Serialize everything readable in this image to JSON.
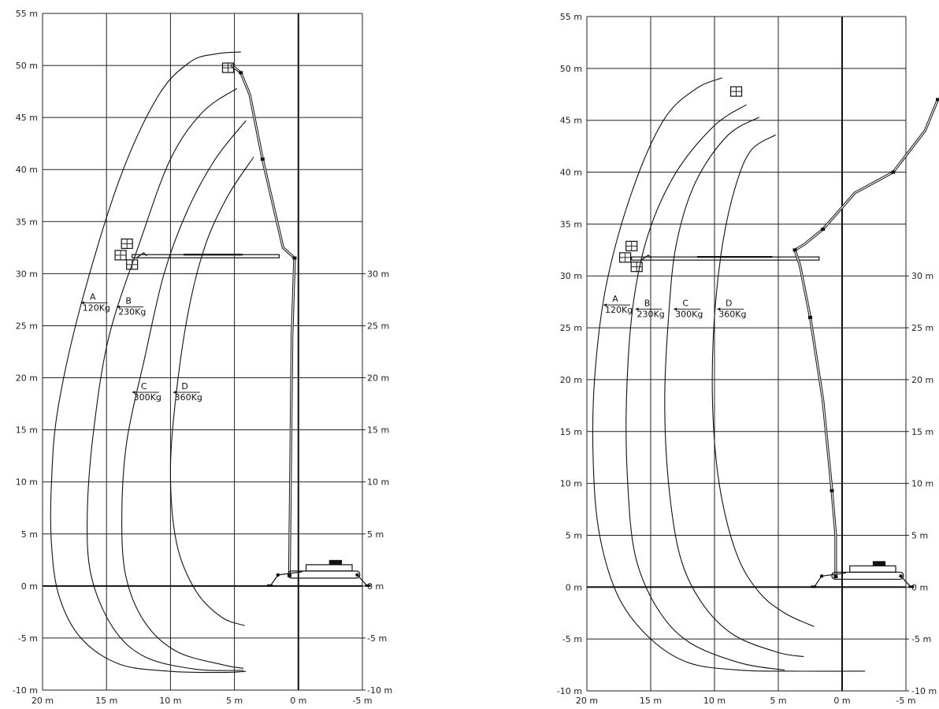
{
  "units": {
    "meter_suffix": " m",
    "load_suffix": "Kg"
  },
  "diagrams": [
    {
      "id": "left",
      "x_ticks": [
        20,
        15,
        10,
        5,
        0,
        -5
      ],
      "y_ticks_left": [
        55,
        50,
        45,
        40,
        35,
        30,
        25,
        20,
        15,
        10,
        5,
        0,
        -5,
        -10
      ],
      "y_ticks_right": [
        30,
        25,
        20,
        15,
        10,
        5,
        0,
        -5,
        -10
      ],
      "x_range_m": [
        20,
        -5
      ],
      "y_range_m": [
        -10,
        55
      ],
      "envelopes": [
        {
          "zone": "A",
          "load_kg": 120,
          "label_at_m": [
            17.0,
            27.2
          ],
          "points_m": [
            [
              4.5,
              51.3
            ],
            [
              6.5,
              51.1
            ],
            [
              8.5,
              50.3
            ],
            [
              11,
              47
            ],
            [
              14,
              39
            ],
            [
              17,
              27
            ],
            [
              18.8,
              17
            ],
            [
              19.3,
              10
            ],
            [
              19.3,
              4
            ],
            [
              18.7,
              -1
            ],
            [
              17,
              -5
            ],
            [
              14,
              -7.5
            ],
            [
              10,
              -8.2
            ],
            [
              6,
              -8.3
            ],
            [
              4.1,
              -8.2
            ]
          ]
        },
        {
          "zone": "B",
          "load_kg": 230,
          "label_at_m": [
            14.2,
            26.8
          ],
          "points_m": [
            [
              4.8,
              47.8
            ],
            [
              7.5,
              45.5
            ],
            [
              10,
              41
            ],
            [
              12.4,
              33
            ],
            [
              14.8,
              24
            ],
            [
              16,
              15
            ],
            [
              16.5,
              7
            ],
            [
              16.2,
              1
            ],
            [
              14.5,
              -4
            ],
            [
              12,
              -6.8
            ],
            [
              8,
              -8
            ],
            [
              4.3,
              -8.1
            ]
          ]
        },
        {
          "zone": "C",
          "load_kg": 300,
          "label_at_m": [
            13.0,
            18.6
          ],
          "points_m": [
            [
              4.1,
              44.7
            ],
            [
              6.5,
              41
            ],
            [
              8.7,
              36
            ],
            [
              10.5,
              30
            ],
            [
              12,
              22
            ],
            [
              13.4,
              14
            ],
            [
              13.8,
              7
            ],
            [
              13.5,
              1
            ],
            [
              12,
              -3.5
            ],
            [
              9.5,
              -6.3
            ],
            [
              5.8,
              -7.6
            ],
            [
              4.3,
              -7.9
            ]
          ]
        },
        {
          "zone": "D",
          "load_kg": 360,
          "label_at_m": [
            9.8,
            18.6
          ],
          "points_m": [
            [
              3.5,
              41.2
            ],
            [
              5.5,
              37.5
            ],
            [
              7.2,
              33
            ],
            [
              8.5,
              27
            ],
            [
              9.5,
              19
            ],
            [
              10,
              11
            ],
            [
              9.5,
              4
            ],
            [
              8,
              -0.5
            ],
            [
              6,
              -3
            ],
            [
              4.2,
              -3.8
            ]
          ]
        }
      ],
      "boom_vertical_m": [
        [
          0.7,
          1
        ],
        [
          0.5,
          24
        ],
        [
          0.3,
          31.5
        ],
        [
          1.2,
          32.5
        ],
        [
          2.8,
          41
        ],
        [
          3.8,
          47.2
        ],
        [
          4.5,
          49.3
        ],
        [
          5.2,
          50
        ]
      ],
      "boom_horizontal_m": [
        [
          13,
          31.6
        ],
        [
          1.5,
          31.8
        ]
      ],
      "basket_upper_m": [
        5.5,
        49.7
      ],
      "basket_side_m": [
        13.2,
        31.7
      ]
    },
    {
      "id": "right",
      "x_ticks": [
        20,
        15,
        10,
        5,
        0,
        -5
      ],
      "y_ticks_left": [
        55,
        50,
        45,
        40,
        35,
        30,
        25,
        20,
        15,
        10,
        5,
        0,
        -5,
        -10
      ],
      "y_ticks_right": [
        30,
        25,
        20,
        15,
        10,
        5,
        0,
        -5,
        -10
      ],
      "x_range_m": [
        20,
        -5
      ],
      "y_range_m": [
        -10,
        55
      ],
      "envelopes": [
        {
          "zone": "A",
          "load_kg": 120,
          "label_at_m": [
            18.7,
            27.2
          ],
          "points_m": [
            [
              9.4,
              49.1
            ],
            [
              11.5,
              48
            ],
            [
              14,
              45
            ],
            [
              16.5,
              38
            ],
            [
              18.5,
              29
            ],
            [
              19.4,
              20
            ],
            [
              19.5,
              12
            ],
            [
              19,
              5
            ],
            [
              17.5,
              -1
            ],
            [
              15,
              -5
            ],
            [
              12,
              -7.3
            ],
            [
              8,
              -8
            ],
            [
              4,
              -8.1
            ],
            [
              -1.8,
              -8.1
            ]
          ]
        },
        {
          "zone": "B",
          "load_kg": 230,
          "label_at_m": [
            16.2,
            26.8
          ],
          "points_m": [
            [
              7.5,
              46.5
            ],
            [
              10,
              44.5
            ],
            [
              13,
              40
            ],
            [
              15.2,
              34
            ],
            [
              16.4,
              27
            ],
            [
              16.9,
              18
            ],
            [
              16.8,
              10
            ],
            [
              16.2,
              3
            ],
            [
              14.5,
              -2
            ],
            [
              12,
              -5.3
            ],
            [
              8,
              -7.3
            ],
            [
              4.5,
              -8
            ]
          ]
        },
        {
          "zone": "C",
          "load_kg": 300,
          "label_at_m": [
            13.2,
            26.8
          ],
          "points_m": [
            [
              6.5,
              45.3
            ],
            [
              9,
              43.5
            ],
            [
              11.5,
              39
            ],
            [
              13,
              33
            ],
            [
              13.6,
              26
            ],
            [
              13.9,
              18
            ],
            [
              13.6,
              10
            ],
            [
              12.7,
              3
            ],
            [
              11,
              -1.5
            ],
            [
              8.5,
              -4.6
            ],
            [
              5,
              -6.3
            ],
            [
              3,
              -6.7
            ]
          ]
        },
        {
          "zone": "D",
          "load_kg": 360,
          "label_at_m": [
            9.8,
            26.8
          ],
          "points_m": [
            [
              5.2,
              43.6
            ],
            [
              7.2,
              42
            ],
            [
              8.5,
              38
            ],
            [
              9.5,
              32
            ],
            [
              10.1,
              24
            ],
            [
              10.1,
              16
            ],
            [
              9.5,
              9
            ],
            [
              8.2,
              3
            ],
            [
              6.5,
              -0.5
            ],
            [
              4.5,
              -2.5
            ],
            [
              2.2,
              -3.8
            ]
          ]
        }
      ],
      "boom_vertical_m": [
        [
          0.5,
          1
        ],
        [
          0.5,
          5
        ],
        [
          0.8,
          9.3
        ],
        [
          1.5,
          18
        ],
        [
          2.5,
          26
        ],
        [
          3.3,
          31
        ],
        [
          3.7,
          32.5
        ],
        [
          3,
          33
        ],
        [
          1.5,
          34.5
        ],
        [
          -1,
          38
        ],
        [
          -4,
          40
        ],
        [
          -6.5,
          44
        ],
        [
          -7.5,
          47
        ]
      ],
      "boom_horizontal_m": [
        [
          16.5,
          31.6
        ],
        [
          1.8,
          31.8
        ]
      ],
      "basket_upper_m": [
        8.3,
        47.7
      ],
      "basket_side_m": [
        16.3,
        31.7
      ]
    }
  ]
}
